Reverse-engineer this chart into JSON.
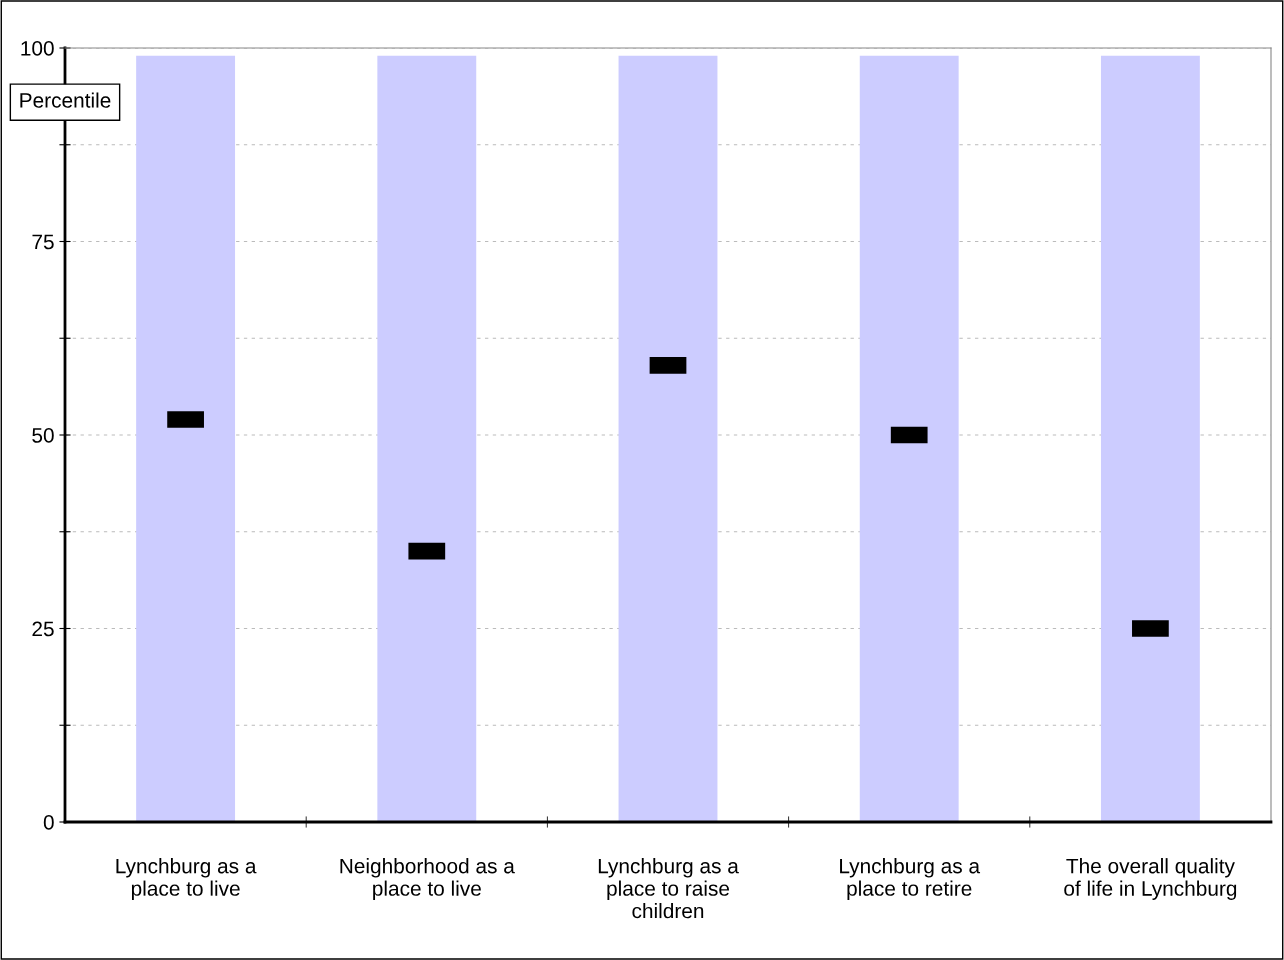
{
  "chart_data": {
    "type": "bar",
    "ylabel": "Percentile",
    "categories": [
      "Lynchburg as a\nplace to live",
      "Neighborhood as a\nplace to live",
      "Lynchburg as a\nplace to raise\nchildren",
      "Lynchburg as a\nplace to retire",
      "The overall quality\nof life in Lynchburg"
    ],
    "series": [
      {
        "color": "#ccccff",
        "values": [
          99,
          99,
          99,
          99,
          99
        ]
      },
      {
        "type": "scatter",
        "color": "#000000",
        "values": [
          52,
          35,
          59,
          50,
          25
        ]
      }
    ],
    "ylim": [
      0,
      100
    ],
    "yticks": [
      0,
      {
        "value": 12.5,
        "label": null
      },
      25,
      {
        "value": 37.5,
        "label": null
      },
      50,
      {
        "value": 62.5,
        "label": null
      },
      75,
      {
        "value": 87.5,
        "label": null
      },
      100
    ],
    "grid": "y"
  }
}
